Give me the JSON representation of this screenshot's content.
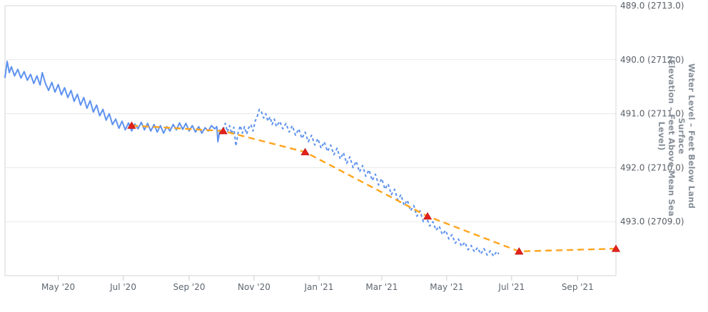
{
  "app": {
    "description": "Groundwater water-level time-series chart",
    "background": "#ffffff"
  },
  "y_axis": {
    "title_line1": "Water Level – Feet Below Land Surface",
    "title_line2": "(Elevation – Feet Above Mean Sea Level)",
    "tick_labels": [
      "489.0 (2713.0)",
      "490.0 (2712.0)",
      "491.0 (2711.0)",
      "492.0 (2710.0)",
      "493.0 (2709.0)"
    ],
    "tick_values": [
      489,
      490,
      491,
      492,
      493
    ]
  },
  "x_axis": {
    "tick_labels": [
      "May '20",
      "Jul '20",
      "Sep '20",
      "Nov '20",
      "Jan '21",
      "Mar '21",
      "May '21",
      "Jul '21",
      "Sep '21"
    ],
    "tick_days": [
      50,
      111,
      173,
      234,
      295,
      354,
      415,
      476,
      538
    ]
  },
  "colors": {
    "approved_line": "#5E92EE",
    "provisional_line": "#5E92EE",
    "trend_line": "#FFA41C",
    "marker": "#E3211A",
    "marker_edge": "#B91410",
    "gridline": "#E7E7E7",
    "plot_border": "#D6D6D6",
    "tick_mark": "#C9CFD6",
    "tick_text": "#5D6670"
  },
  "chart_data": {
    "type": "line",
    "title": "",
    "xlabel": "",
    "ylabel": "Water Level – Feet Below Land Surface (Elevation – Feet Above Mean Sea Level)",
    "x_unit": "days since 2020-03-12 (left edge of plot)",
    "x_range": [
      0,
      574
    ],
    "y_range": [
      489,
      494
    ],
    "y_direction": "increases downward (feet below land surface)",
    "grid": "horizontal only",
    "legend": "none visible",
    "series": [
      {
        "name": "daily water level (solid, approved)",
        "style": "solid",
        "points": [
          [
            0,
            490.33
          ],
          [
            2,
            490.03
          ],
          [
            4,
            490.24
          ],
          [
            6,
            490.13
          ],
          [
            9,
            490.3
          ],
          [
            12,
            490.18
          ],
          [
            15,
            490.34
          ],
          [
            18,
            490.22
          ],
          [
            21,
            490.38
          ],
          [
            24,
            490.27
          ],
          [
            27,
            490.44
          ],
          [
            30,
            490.3
          ],
          [
            33,
            490.47
          ],
          [
            35,
            490.24
          ],
          [
            38,
            490.44
          ],
          [
            41,
            490.57
          ],
          [
            44,
            490.42
          ],
          [
            47,
            490.6
          ],
          [
            50,
            490.46
          ],
          [
            53,
            490.65
          ],
          [
            56,
            490.52
          ],
          [
            59,
            490.7
          ],
          [
            62,
            490.57
          ],
          [
            65,
            490.77
          ],
          [
            68,
            490.64
          ],
          [
            71,
            490.84
          ],
          [
            74,
            490.7
          ],
          [
            77,
            490.9
          ],
          [
            80,
            490.76
          ],
          [
            83,
            490.97
          ],
          [
            86,
            490.84
          ],
          [
            89,
            491.04
          ],
          [
            92,
            490.92
          ],
          [
            95,
            491.12
          ],
          [
            98,
            491.0
          ],
          [
            101,
            491.2
          ],
          [
            104,
            491.1
          ],
          [
            107,
            491.27
          ],
          [
            110,
            491.14
          ],
          [
            113,
            491.3
          ],
          [
            116,
            491.17
          ],
          [
            119,
            491.32
          ],
          [
            122,
            491.19
          ],
          [
            125,
            491.28
          ],
          [
            128,
            491.16
          ],
          [
            131,
            491.3
          ],
          [
            134,
            491.18
          ],
          [
            137,
            491.32
          ],
          [
            140,
            491.2
          ],
          [
            143,
            491.34
          ],
          [
            146,
            491.22
          ],
          [
            149,
            491.36
          ],
          [
            152,
            491.24
          ],
          [
            155,
            491.32
          ],
          [
            158,
            491.2
          ],
          [
            161,
            491.3
          ],
          [
            164,
            491.17
          ],
          [
            167,
            491.29
          ],
          [
            170,
            491.18
          ],
          [
            173,
            491.32
          ],
          [
            176,
            491.22
          ],
          [
            179,
            491.34
          ],
          [
            182,
            491.24
          ],
          [
            185,
            491.36
          ],
          [
            188,
            491.26
          ],
          [
            191,
            491.32
          ],
          [
            194,
            491.22
          ],
          [
            197,
            491.28
          ],
          [
            199,
            491.24
          ],
          [
            200,
            491.52
          ],
          [
            202,
            491.3
          ]
        ]
      },
      {
        "name": "daily water level (dashed, provisional)",
        "style": "dashed",
        "points": [
          [
            205,
            491.3
          ],
          [
            207,
            491.18
          ],
          [
            209,
            491.34
          ],
          [
            211,
            491.22
          ],
          [
            213,
            491.38
          ],
          [
            215,
            491.25
          ],
          [
            217,
            491.6
          ],
          [
            219,
            491.35
          ],
          [
            221,
            491.22
          ],
          [
            223,
            491.36
          ],
          [
            225,
            491.24
          ],
          [
            227,
            491.38
          ],
          [
            229,
            491.26
          ],
          [
            231,
            491.2
          ],
          [
            233,
            491.32
          ],
          [
            235,
            491.14
          ],
          [
            237,
            491.05
          ],
          [
            239,
            490.92
          ],
          [
            241,
            490.97
          ],
          [
            243,
            491.08
          ],
          [
            245,
            491.0
          ],
          [
            247,
            491.14
          ],
          [
            249,
            491.06
          ],
          [
            251,
            491.2
          ],
          [
            253,
            491.1
          ],
          [
            255,
            491.24
          ],
          [
            258,
            491.14
          ],
          [
            261,
            491.28
          ],
          [
            264,
            491.18
          ],
          [
            267,
            491.34
          ],
          [
            270,
            491.22
          ],
          [
            273,
            491.4
          ],
          [
            276,
            491.28
          ],
          [
            279,
            491.46
          ],
          [
            282,
            491.34
          ],
          [
            285,
            491.52
          ],
          [
            288,
            491.4
          ],
          [
            291,
            491.58
          ],
          [
            294,
            491.46
          ],
          [
            297,
            491.64
          ],
          [
            300,
            491.52
          ],
          [
            303,
            491.7
          ],
          [
            306,
            491.58
          ],
          [
            309,
            491.76
          ],
          [
            312,
            491.64
          ],
          [
            315,
            491.84
          ],
          [
            318,
            491.72
          ],
          [
            321,
            491.92
          ],
          [
            324,
            491.8
          ],
          [
            327,
            492.0
          ],
          [
            330,
            491.88
          ],
          [
            333,
            492.08
          ],
          [
            336,
            491.96
          ],
          [
            339,
            492.16
          ],
          [
            342,
            492.04
          ],
          [
            345,
            492.24
          ],
          [
            348,
            492.12
          ],
          [
            351,
            492.32
          ],
          [
            354,
            492.2
          ],
          [
            357,
            492.4
          ],
          [
            360,
            492.3
          ],
          [
            363,
            492.5
          ],
          [
            366,
            492.4
          ],
          [
            369,
            492.6
          ],
          [
            372,
            492.5
          ],
          [
            375,
            492.7
          ],
          [
            378,
            492.6
          ],
          [
            381,
            492.8
          ],
          [
            384,
            492.7
          ],
          [
            387,
            492.9
          ],
          [
            390,
            492.8
          ],
          [
            393,
            493.0
          ],
          [
            396,
            492.92
          ],
          [
            399,
            493.08
          ],
          [
            402,
            493.0
          ],
          [
            405,
            493.16
          ],
          [
            408,
            493.08
          ],
          [
            411,
            493.24
          ],
          [
            414,
            493.16
          ],
          [
            417,
            493.32
          ],
          [
            420,
            493.24
          ],
          [
            423,
            493.4
          ],
          [
            426,
            493.32
          ],
          [
            429,
            493.46
          ],
          [
            432,
            493.38
          ],
          [
            435,
            493.52
          ],
          [
            438,
            493.44
          ],
          [
            441,
            493.56
          ],
          [
            444,
            493.48
          ],
          [
            447,
            493.6
          ],
          [
            450,
            493.5
          ],
          [
            453,
            493.62
          ],
          [
            456,
            493.54
          ],
          [
            459,
            493.64
          ],
          [
            462,
            493.55
          ],
          [
            464,
            493.6
          ]
        ]
      },
      {
        "name": "periodic measurement trend (orange dashed)",
        "style": "dashed",
        "points": [
          [
            119,
            491.22
          ],
          [
            205,
            491.32
          ],
          [
            282,
            491.71
          ],
          [
            397,
            492.9
          ],
          [
            483,
            493.55
          ],
          [
            574,
            493.5
          ]
        ]
      },
      {
        "name": "periodic (discrete) measurements",
        "style": "triangle-markers",
        "points": [
          [
            119,
            491.22
          ],
          [
            205,
            491.32
          ],
          [
            282,
            491.71
          ],
          [
            397,
            492.9
          ],
          [
            483,
            493.55
          ],
          [
            574,
            493.5
          ]
        ]
      }
    ]
  }
}
